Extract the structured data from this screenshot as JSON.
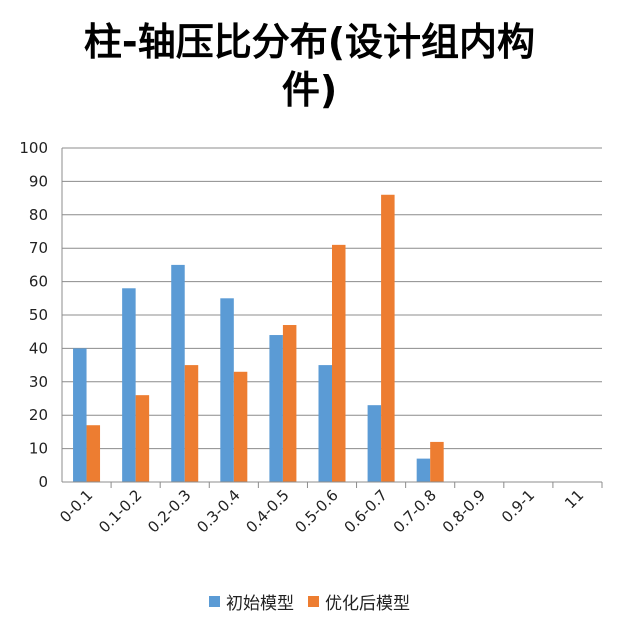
{
  "chart_data": {
    "type": "bar",
    "title": "柱-轴压比分布(设计组内构件)",
    "xlabel": "",
    "ylabel": "",
    "ylim": [
      0,
      100
    ],
    "yticks": [
      0,
      10,
      20,
      30,
      40,
      50,
      60,
      70,
      80,
      90,
      100
    ],
    "grid": true,
    "legend_position": "bottom",
    "categories": [
      "0-0.1",
      "0.1-0.2",
      "0.2-0.3",
      "0.3-0.4",
      "0.4-0.5",
      "0.5-0.6",
      "0.6-0.7",
      "0.7-0.8",
      "0.8-0.9",
      "0.9-1",
      "11"
    ],
    "series": [
      {
        "name": "初始模型",
        "color": "#5b9bd5",
        "values": [
          40,
          58,
          65,
          55,
          44,
          35,
          23,
          7,
          0,
          0,
          0
        ]
      },
      {
        "name": "优化后模型",
        "color": "#ed7d31",
        "values": [
          17,
          26,
          35,
          33,
          47,
          71,
          86,
          12,
          0,
          0,
          0
        ]
      }
    ]
  }
}
